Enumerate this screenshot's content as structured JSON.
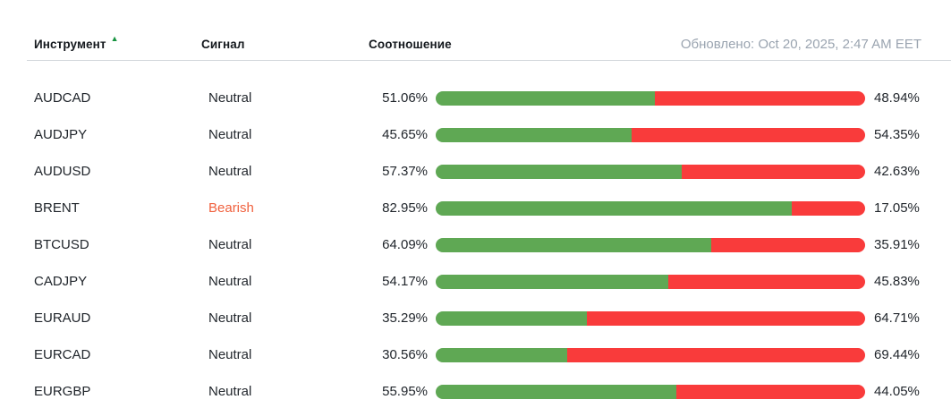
{
  "header": {
    "columns": {
      "instrument": "Инструмент",
      "signal": "Сигнал",
      "ratio": "Соотношение"
    },
    "sort_icon": "▲",
    "updated_label": "Обновлено: Oct 20, 2025, 2:47 AM EET"
  },
  "colors": {
    "buy_bar": "#5fa854",
    "sell_bar": "#f93b3b",
    "bearish_text": "#f0603d",
    "neutral_text": "#23282e",
    "updated_text": "#9aa4b0",
    "sort_arrow": "#179340"
  },
  "rows": [
    {
      "instrument": "AUDCAD",
      "signal": "Neutral",
      "signal_type": "neutral",
      "buy_pct_label": "51.06%",
      "sell_pct_label": "48.94%",
      "buy_pct": 51.06,
      "sell_pct": 48.94
    },
    {
      "instrument": "AUDJPY",
      "signal": "Neutral",
      "signal_type": "neutral",
      "buy_pct_label": "45.65%",
      "sell_pct_label": "54.35%",
      "buy_pct": 45.65,
      "sell_pct": 54.35
    },
    {
      "instrument": "AUDUSD",
      "signal": "Neutral",
      "signal_type": "neutral",
      "buy_pct_label": "57.37%",
      "sell_pct_label": "42.63%",
      "buy_pct": 57.37,
      "sell_pct": 42.63
    },
    {
      "instrument": "BRENT",
      "signal": "Bearish",
      "signal_type": "bearish",
      "buy_pct_label": "82.95%",
      "sell_pct_label": "17.05%",
      "buy_pct": 82.95,
      "sell_pct": 17.05
    },
    {
      "instrument": "BTCUSD",
      "signal": "Neutral",
      "signal_type": "neutral",
      "buy_pct_label": "64.09%",
      "sell_pct_label": "35.91%",
      "buy_pct": 64.09,
      "sell_pct": 35.91
    },
    {
      "instrument": "CADJPY",
      "signal": "Neutral",
      "signal_type": "neutral",
      "buy_pct_label": "54.17%",
      "sell_pct_label": "45.83%",
      "buy_pct": 54.17,
      "sell_pct": 45.83
    },
    {
      "instrument": "EURAUD",
      "signal": "Neutral",
      "signal_type": "neutral",
      "buy_pct_label": "35.29%",
      "sell_pct_label": "64.71%",
      "buy_pct": 35.29,
      "sell_pct": 64.71
    },
    {
      "instrument": "EURCAD",
      "signal": "Neutral",
      "signal_type": "neutral",
      "buy_pct_label": "30.56%",
      "sell_pct_label": "69.44%",
      "buy_pct": 30.56,
      "sell_pct": 69.44
    },
    {
      "instrument": "EURGBP",
      "signal": "Neutral",
      "signal_type": "neutral",
      "buy_pct_label": "55.95%",
      "sell_pct_label": "44.05%",
      "buy_pct": 55.95,
      "sell_pct": 44.05
    }
  ]
}
